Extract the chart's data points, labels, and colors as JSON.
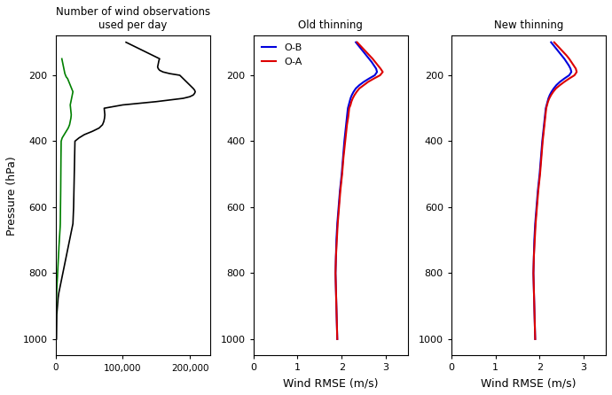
{
  "title1": "Number of wind observations\nused per day",
  "title2": "Old thinning",
  "title3": "New thinning",
  "ylabel": "Pressure (hPa)",
  "xlabel2": "Wind RMSE (m/s)",
  "xlabel3": "Wind RMSE (m/s)",
  "color_black": "#000000",
  "color_green": "#008000",
  "color_blue": "#0000dd",
  "color_red": "#dd0000",
  "xlim1": [
    0,
    230000
  ],
  "xlim2": [
    0,
    3.5
  ],
  "xlim3": [
    0,
    3.5
  ],
  "ylim": [
    1050,
    80
  ],
  "yticks": [
    200,
    400,
    600,
    800,
    1000
  ],
  "xticks1": [
    0,
    100000,
    200000
  ],
  "xtick1_labels": [
    "0",
    "100,000",
    "200,000"
  ],
  "xticks2": [
    0,
    1,
    2,
    3
  ],
  "black_p": [
    1000,
    925,
    900,
    875,
    860,
    850,
    840,
    830,
    820,
    810,
    800,
    780,
    760,
    750,
    740,
    730,
    720,
    710,
    700,
    690,
    680,
    670,
    660,
    650,
    600,
    550,
    500,
    450,
    400,
    390,
    380,
    370,
    360,
    350,
    340,
    330,
    320,
    310,
    300,
    290,
    280,
    270,
    265,
    260,
    255,
    250,
    245,
    240,
    230,
    220,
    210,
    200,
    195,
    190,
    185,
    180,
    175,
    170,
    165,
    160,
    155,
    150,
    145,
    140,
    135,
    130,
    125,
    120,
    115,
    110,
    105,
    100
  ],
  "black_x": [
    1500,
    2000,
    3000,
    4000,
    5000,
    6000,
    7000,
    8000,
    9000,
    10000,
    11000,
    13000,
    15000,
    16000,
    17000,
    18000,
    19000,
    20000,
    21000,
    22000,
    23000,
    24000,
    25000,
    26000,
    27000,
    27500,
    28000,
    28500,
    29000,
    35000,
    43000,
    55000,
    65000,
    70000,
    72000,
    73000,
    73500,
    73000,
    72500,
    100000,
    150000,
    190000,
    200000,
    205000,
    207000,
    208000,
    207000,
    205000,
    200000,
    195000,
    190000,
    185000,
    170000,
    160000,
    155000,
    153000,
    152000,
    152500,
    153000,
    153500,
    154000,
    155000,
    150000,
    145000,
    140000,
    135000,
    130000,
    125000,
    120000,
    115000,
    110000,
    105000
  ],
  "green_p": [
    1000,
    950,
    900,
    875,
    860,
    850,
    840,
    830,
    820,
    810,
    800,
    780,
    760,
    750,
    740,
    730,
    720,
    710,
    700,
    690,
    680,
    670,
    660,
    650,
    600,
    550,
    500,
    450,
    400,
    390,
    380,
    370,
    360,
    350,
    340,
    330,
    320,
    310,
    300,
    290,
    280,
    270,
    265,
    260,
    255,
    250,
    245,
    240,
    230,
    220,
    210,
    205,
    200,
    195,
    190,
    185,
    180,
    175,
    170,
    165,
    160,
    155,
    150
  ],
  "green_x": [
    500,
    800,
    1200,
    1500,
    1700,
    2000,
    2200,
    2400,
    2700,
    3000,
    3200,
    3700,
    4200,
    4500,
    4700,
    5000,
    5200,
    5500,
    5800,
    6100,
    6400,
    6700,
    7000,
    7200,
    7500,
    7800,
    8000,
    8200,
    8500,
    10000,
    13000,
    16000,
    19000,
    21000,
    22000,
    23000,
    23500,
    23000,
    22500,
    22000,
    23000,
    24000,
    24500,
    25000,
    25500,
    26000,
    25000,
    24000,
    22000,
    20000,
    18000,
    16000,
    15000,
    14000,
    13500,
    13000,
    12500,
    12000,
    11500,
    11000,
    10500,
    10000,
    9500
  ],
  "rmse_p": [
    1000,
    950,
    900,
    850,
    800,
    750,
    700,
    650,
    600,
    550,
    500,
    450,
    400,
    375,
    350,
    325,
    300,
    290,
    280,
    270,
    260,
    250,
    240,
    230,
    220,
    210,
    200,
    190,
    180,
    170,
    160,
    150,
    140,
    130,
    120,
    110,
    100
  ],
  "old_OB": [
    1.9,
    1.89,
    1.88,
    1.87,
    1.86,
    1.87,
    1.88,
    1.9,
    1.93,
    1.96,
    2.0,
    2.03,
    2.06,
    2.08,
    2.1,
    2.12,
    2.14,
    2.16,
    2.18,
    2.2,
    2.23,
    2.27,
    2.32,
    2.4,
    2.5,
    2.62,
    2.75,
    2.8,
    2.78,
    2.73,
    2.68,
    2.62,
    2.56,
    2.5,
    2.44,
    2.38,
    2.32
  ],
  "old_OA": [
    1.9,
    1.89,
    1.88,
    1.87,
    1.86,
    1.87,
    1.89,
    1.91,
    1.94,
    1.97,
    2.01,
    2.04,
    2.08,
    2.1,
    2.12,
    2.15,
    2.17,
    2.2,
    2.22,
    2.25,
    2.29,
    2.34,
    2.4,
    2.5,
    2.6,
    2.73,
    2.87,
    2.93,
    2.88,
    2.82,
    2.76,
    2.7,
    2.63,
    2.56,
    2.49,
    2.42,
    2.35
  ],
  "new_OB": [
    1.9,
    1.89,
    1.88,
    1.87,
    1.86,
    1.87,
    1.88,
    1.9,
    1.93,
    1.96,
    2.0,
    2.03,
    2.06,
    2.08,
    2.1,
    2.12,
    2.14,
    2.16,
    2.18,
    2.2,
    2.23,
    2.27,
    2.32,
    2.38,
    2.46,
    2.56,
    2.67,
    2.72,
    2.7,
    2.66,
    2.61,
    2.56,
    2.5,
    2.44,
    2.38,
    2.32,
    2.26
  ],
  "new_OA": [
    1.9,
    1.89,
    1.88,
    1.87,
    1.86,
    1.87,
    1.89,
    1.91,
    1.94,
    1.97,
    2.01,
    2.04,
    2.07,
    2.09,
    2.11,
    2.13,
    2.15,
    2.17,
    2.19,
    2.22,
    2.26,
    2.31,
    2.37,
    2.46,
    2.56,
    2.67,
    2.79,
    2.84,
    2.82,
    2.77,
    2.72,
    2.67,
    2.61,
    2.54,
    2.47,
    2.4,
    2.33
  ]
}
